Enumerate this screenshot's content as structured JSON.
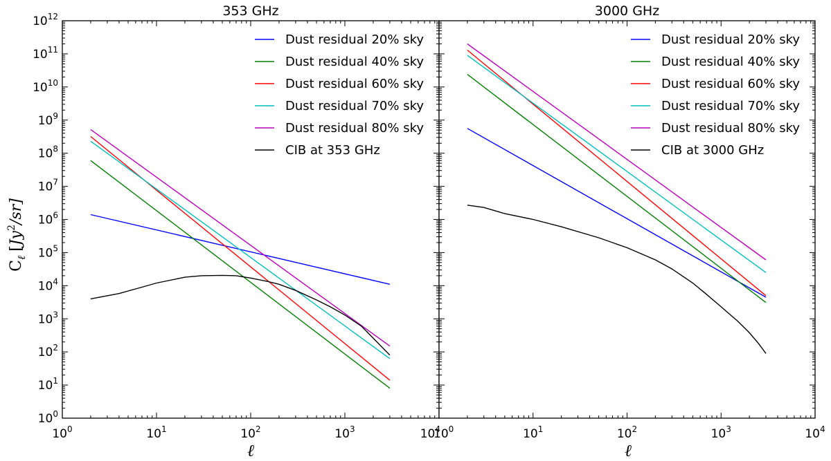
{
  "figure": {
    "ylabel": {
      "main": "C",
      "sub": "ℓ",
      "unit_open": "[",
      "unit_var": "Jy",
      "unit_exp": "2",
      "unit_rest": "/sr]"
    },
    "xlabel": "ℓ"
  },
  "chart_data": [
    {
      "type": "line",
      "title": "353 GHz",
      "xscale": "log",
      "yscale": "log",
      "xlim": [
        1,
        10000
      ],
      "ylim": [
        1,
        1000000000000
      ],
      "x_ticks": [
        {
          "base": "10",
          "exp": "0"
        },
        {
          "base": "10",
          "exp": "1"
        },
        {
          "base": "10",
          "exp": "2"
        },
        {
          "base": "10",
          "exp": "3"
        },
        {
          "base": "10",
          "exp": "4"
        }
      ],
      "y_ticks": [
        {
          "base": "10",
          "exp": "0"
        },
        {
          "base": "10",
          "exp": "1"
        },
        {
          "base": "10",
          "exp": "2"
        },
        {
          "base": "10",
          "exp": "3"
        },
        {
          "base": "10",
          "exp": "4"
        },
        {
          "base": "10",
          "exp": "5"
        },
        {
          "base": "10",
          "exp": "6"
        },
        {
          "base": "10",
          "exp": "7"
        },
        {
          "base": "10",
          "exp": "8"
        },
        {
          "base": "10",
          "exp": "9"
        },
        {
          "base": "10",
          "exp": "10"
        },
        {
          "base": "10",
          "exp": "11"
        },
        {
          "base": "10",
          "exp": "12"
        }
      ],
      "legend_position": "top-right",
      "series": [
        {
          "name": "Dust residual 20% sky",
          "color": "#0000ff",
          "x": [
            2,
            3000
          ],
          "y": [
            1400000,
            11000
          ]
        },
        {
          "name": "Dust residual 40% sky",
          "color": "#008000",
          "x": [
            2,
            3000
          ],
          "y": [
            60000000,
            8
          ]
        },
        {
          "name": "Dust residual 60% sky",
          "color": "#ff0000",
          "x": [
            2,
            3000
          ],
          "y": [
            320000000,
            14
          ]
        },
        {
          "name": "Dust residual 70% sky",
          "color": "#00bfbf",
          "x": [
            2,
            3000
          ],
          "y": [
            230000000,
            63
          ]
        },
        {
          "name": "Dust residual 80% sky",
          "color": "#bf00bf",
          "x": [
            2,
            3000
          ],
          "y": [
            520000000,
            150
          ]
        },
        {
          "name": "CIB at 353 GHz",
          "color": "#000000",
          "x": [
            2,
            4,
            7,
            10,
            20,
            30,
            50,
            70,
            100,
            150,
            200,
            300,
            500,
            700,
            1000,
            1500,
            2000,
            3000
          ],
          "y": [
            4000,
            5800,
            9000,
            12000,
            18000,
            20000,
            20500,
            20000,
            17000,
            13500,
            11000,
            7200,
            3700,
            2300,
            1300,
            600,
            260,
            80
          ]
        }
      ]
    },
    {
      "type": "line",
      "title": "3000 GHz",
      "xscale": "log",
      "yscale": "log",
      "xlim": [
        1,
        10000
      ],
      "ylim": [
        1,
        1000000000000
      ],
      "x_ticks": [
        {
          "base": "10",
          "exp": "0"
        },
        {
          "base": "10",
          "exp": "1"
        },
        {
          "base": "10",
          "exp": "2"
        },
        {
          "base": "10",
          "exp": "3"
        },
        {
          "base": "10",
          "exp": "4"
        }
      ],
      "legend_position": "top-right",
      "series": [
        {
          "name": "Dust residual 20% sky",
          "color": "#0000ff",
          "x": [
            2,
            3000
          ],
          "y": [
            560000000,
            4500
          ]
        },
        {
          "name": "Dust residual 40% sky",
          "color": "#008000",
          "x": [
            2,
            3000
          ],
          "y": [
            24000000000,
            3100
          ]
        },
        {
          "name": "Dust residual 60% sky",
          "color": "#ff0000",
          "x": [
            2,
            3000
          ],
          "y": [
            130000000000,
            5000
          ]
        },
        {
          "name": "Dust residual 70% sky",
          "color": "#00bfbf",
          "x": [
            2,
            3000
          ],
          "y": [
            90000000000,
            25000
          ]
        },
        {
          "name": "Dust residual 80% sky",
          "color": "#bf00bf",
          "x": [
            2,
            3000
          ],
          "y": [
            200000000000,
            60000
          ]
        },
        {
          "name": "CIB at 3000 GHz",
          "color": "#000000",
          "x": [
            2,
            3,
            5,
            10,
            20,
            50,
            100,
            200,
            300,
            500,
            700,
            1000,
            1500,
            2000,
            2500,
            3000
          ],
          "y": [
            2700000,
            2300000,
            1500000,
            1000000,
            600000,
            280000,
            140000,
            60000,
            32000,
            12000,
            5500,
            2300,
            850,
            380,
            180,
            90
          ]
        }
      ]
    }
  ]
}
